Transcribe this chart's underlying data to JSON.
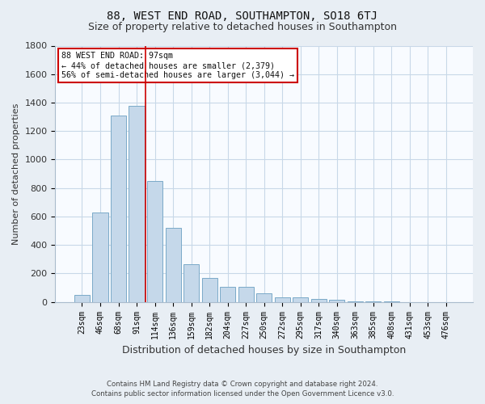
{
  "title": "88, WEST END ROAD, SOUTHAMPTON, SO18 6TJ",
  "subtitle": "Size of property relative to detached houses in Southampton",
  "xlabel": "Distribution of detached houses by size in Southampton",
  "ylabel": "Number of detached properties",
  "categories": [
    "23sqm",
    "46sqm",
    "68sqm",
    "91sqm",
    "114sqm",
    "136sqm",
    "159sqm",
    "182sqm",
    "204sqm",
    "227sqm",
    "250sqm",
    "272sqm",
    "295sqm",
    "317sqm",
    "340sqm",
    "363sqm",
    "385sqm",
    "408sqm",
    "431sqm",
    "453sqm",
    "476sqm"
  ],
  "values": [
    50,
    630,
    1310,
    1380,
    850,
    520,
    265,
    170,
    105,
    105,
    60,
    35,
    35,
    20,
    15,
    5,
    5,
    2,
    1,
    1,
    1
  ],
  "bar_color": "#c5d8ea",
  "bar_edge_color": "#7aaac8",
  "annotation_title": "88 WEST END ROAD: 97sqm",
  "annotation_line1": "← 44% of detached houses are smaller (2,379)",
  "annotation_line2": "56% of semi-detached houses are larger (3,044) →",
  "annotation_box_color": "#ffffff",
  "annotation_box_edge_color": "#cc0000",
  "vline_color": "#cc0000",
  "ylim": [
    0,
    1800
  ],
  "yticks": [
    0,
    200,
    400,
    600,
    800,
    1000,
    1200,
    1400,
    1600,
    1800
  ],
  "footer_line1": "Contains HM Land Registry data © Crown copyright and database right 2024.",
  "footer_line2": "Contains public sector information licensed under the Open Government Licence v3.0.",
  "bg_color": "#e8eef4",
  "plot_bg_color": "#f8fbff",
  "grid_color": "#c8d8e8",
  "title_fontsize": 10,
  "subtitle_fontsize": 9,
  "xlabel_fontsize": 9,
  "ylabel_fontsize": 8,
  "bar_width": 0.85,
  "vline_x": 3.5
}
